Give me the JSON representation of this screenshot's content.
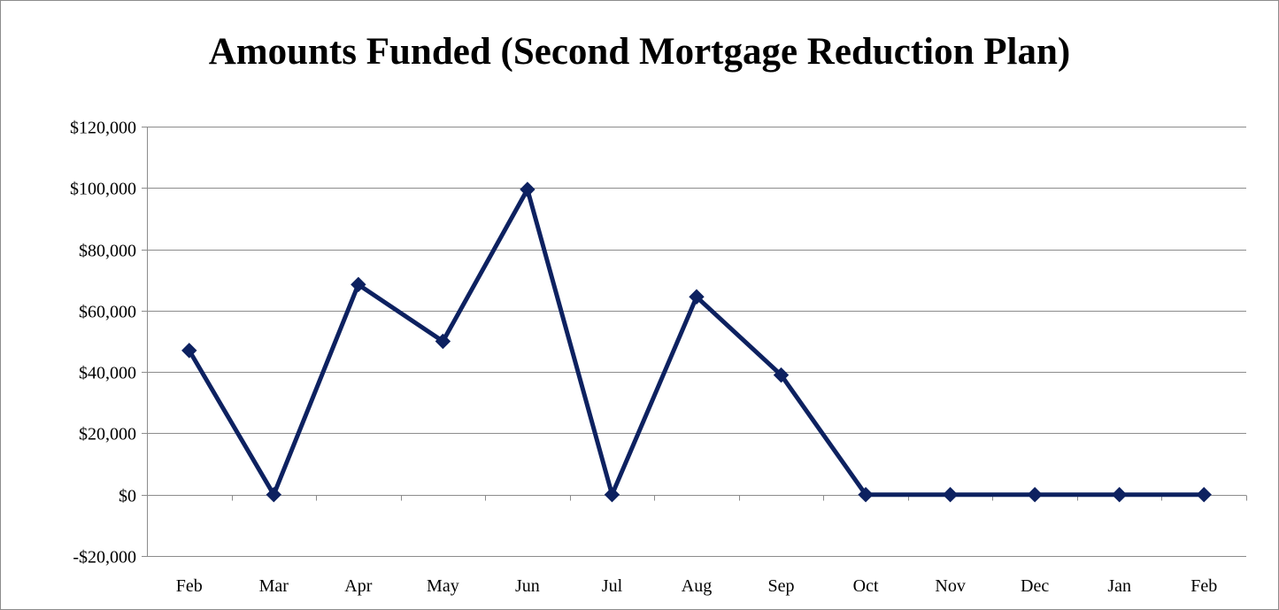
{
  "chart_data": {
    "type": "line",
    "title": "Amounts Funded (Second Mortgage Reduction Plan)",
    "xlabel": "",
    "ylabel": "",
    "categories": [
      "Feb",
      "Mar",
      "Apr",
      "May",
      "Jun",
      "Jul",
      "Aug",
      "Sep",
      "Oct",
      "Nov",
      "Dec",
      "Jan",
      "Feb"
    ],
    "series": [
      {
        "values": [
          47000,
          0,
          68500,
          50000,
          99500,
          0,
          64500,
          39000,
          0,
          0,
          0,
          0,
          0
        ],
        "color": "#0d2160",
        "marker": "diamond"
      }
    ],
    "ylim": [
      -20000,
      120000
    ],
    "yticks": [
      -20000,
      0,
      20000,
      40000,
      60000,
      80000,
      100000,
      120000
    ],
    "ytick_labels": [
      "-$20,000",
      "$0",
      "$20,000",
      "$40,000",
      "$60,000",
      "$80,000",
      "$100,000",
      "$120,000"
    ],
    "grid": true,
    "legend": "none",
    "colors": {
      "line": "#0d2160",
      "grid": "#8c8c8c",
      "axis": "#8c8c8c"
    }
  }
}
